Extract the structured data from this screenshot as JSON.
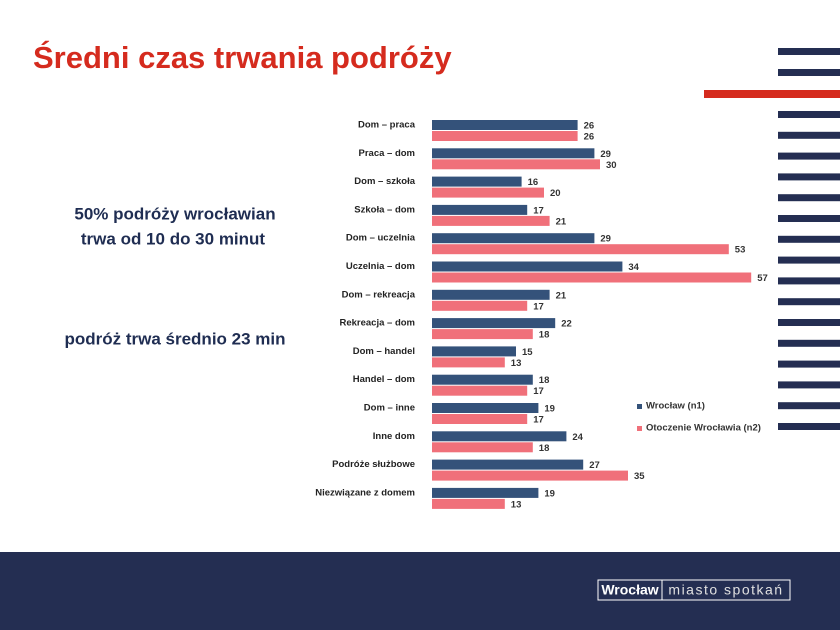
{
  "chart_data": {
    "type": "barh",
    "title": "Średni czas trwania podróży",
    "annotations": [
      "50% podróży wrocławian",
      "trwa od 10 do 30 minut",
      "podróż trwa średnio 23 min"
    ],
    "categories": [
      "Dom – praca",
      "Praca – dom",
      "Dom – szkoła",
      "Szkoła – dom",
      "Dom – uczelnia",
      "Uczelnia – dom",
      "Dom – rekreacja",
      "Rekreacja – dom",
      "Dom – handel",
      "Handel – dom",
      "Dom – inne",
      "Inne dom",
      "Podróże służbowe",
      "Niezwiązane z domem"
    ],
    "series": [
      {
        "name": "Wrocław (n1)",
        "color": "#34527a",
        "values": [
          26,
          29,
          16,
          17,
          29,
          34,
          21,
          22,
          15,
          18,
          19,
          24,
          27,
          19
        ]
      },
      {
        "name": "Otoczenie Wrocławia (n2)",
        "color": "#f0707a",
        "values": [
          26,
          30,
          20,
          21,
          53,
          57,
          17,
          18,
          13,
          17,
          17,
          18,
          35,
          13
        ]
      }
    ],
    "legend": "right"
  },
  "footer": {
    "logo_left": "Wrocław",
    "logo_right": "miasto spotkań"
  }
}
